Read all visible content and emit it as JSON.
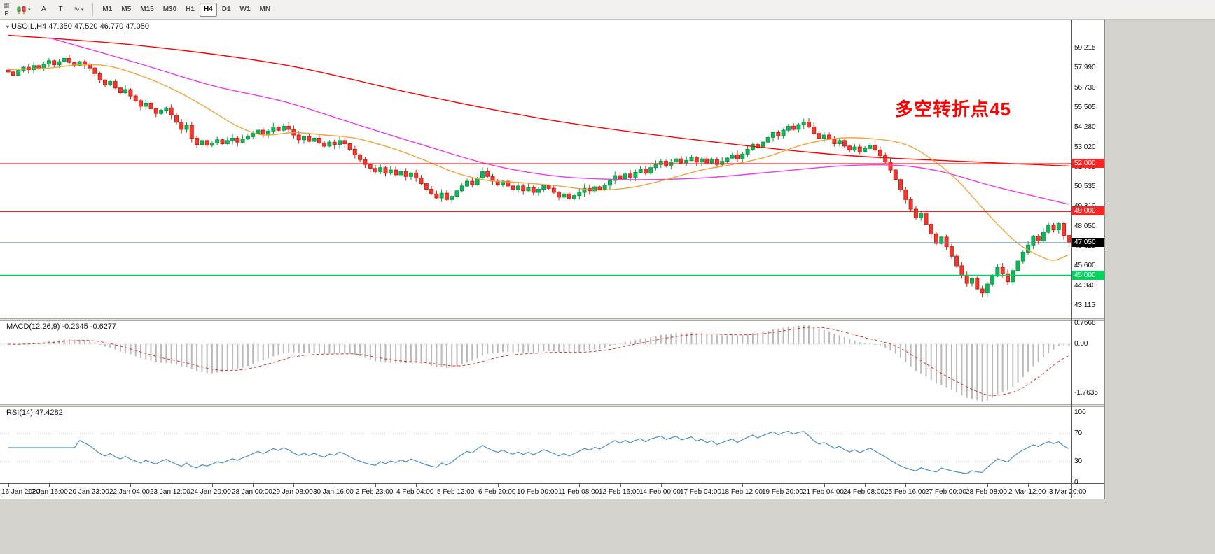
{
  "toolbar": {
    "dock_label": "F",
    "text_buttons": [
      "A",
      "T"
    ],
    "timeframes": [
      "M1",
      "M5",
      "M15",
      "M30",
      "H1",
      "H4",
      "D1",
      "W1",
      "MN"
    ],
    "active_timeframe": "H4"
  },
  "main_chart": {
    "symbol_line": "USOIL,H4  47.350 47.520 46.770 47.050",
    "annotation": {
      "text": "多空转折点45",
      "color": "#ff0000"
    }
  },
  "macd_panel": {
    "title": "MACD(12,26,9) -0.2345 -0.6277"
  },
  "rsi_panel": {
    "title": "RSI(14) 47.4282"
  },
  "chart_data": {
    "type": "candlestick",
    "symbol": "USOIL",
    "timeframe": "H4",
    "ohlc_current": {
      "open": 47.35,
      "high": 47.52,
      "low": 46.77,
      "close": 47.05
    },
    "price_axis_ticks": [
      "59.215",
      "57.990",
      "56.730",
      "55.505",
      "54.280",
      "53.020",
      "51.795",
      "50.535",
      "49.310",
      "48.050",
      "46.825",
      "45.600",
      "44.340",
      "43.115"
    ],
    "levels": [
      {
        "value": 52.0,
        "label": "52.000",
        "line_color": "#ff2424",
        "label_bg": "#ff2424",
        "label_fg": "#ffffff",
        "line_width": 1.2
      },
      {
        "value": 49.0,
        "label": "49.000",
        "line_color": "#ff2424",
        "label_bg": "#ff2424",
        "label_fg": "#ffffff",
        "line_width": 1.2
      },
      {
        "value": 47.05,
        "label": "47.050",
        "line_color": "#5f86aa",
        "label_bg": "#000000",
        "label_fg": "#ffffff",
        "line_width": 1.1
      },
      {
        "value": 45.0,
        "label": "45.000",
        "line_color": "#00d45f",
        "label_bg": "#00d45f",
        "label_fg": "#ffffff",
        "line_width": 1.6
      }
    ],
    "closes": [
      57.75,
      57.55,
      57.85,
      58.05,
      57.9,
      58.15,
      57.95,
      58.25,
      58.45,
      58.2,
      58.4,
      58.6,
      58.35,
      58.15,
      58.4,
      58.2,
      58.0,
      57.65,
      57.25,
      56.95,
      57.15,
      56.75,
      56.45,
      56.65,
      56.25,
      55.95,
      55.6,
      55.8,
      55.45,
      55.15,
      55.35,
      55.5,
      55.05,
      54.6,
      54.15,
      54.4,
      53.6,
      53.2,
      53.45,
      53.15,
      53.3,
      53.5,
      53.25,
      53.45,
      53.6,
      53.35,
      53.55,
      53.7,
      53.9,
      54.1,
      53.85,
      54.05,
      54.3,
      54.1,
      54.35,
      54.15,
      53.8,
      53.5,
      53.7,
      53.4,
      53.6,
      53.3,
      53.1,
      53.35,
      53.2,
      53.45,
      53.25,
      52.9,
      52.55,
      52.25,
      51.95,
      51.7,
      51.5,
      51.75,
      51.4,
      51.6,
      51.3,
      51.5,
      51.2,
      51.4,
      51.1,
      50.75,
      50.4,
      50.1,
      49.85,
      50.15,
      49.75,
      49.95,
      50.3,
      50.6,
      50.9,
      50.7,
      51.1,
      51.5,
      51.2,
      50.9,
      50.7,
      50.9,
      50.6,
      50.4,
      50.6,
      50.3,
      50.5,
      50.2,
      50.4,
      50.65,
      50.45,
      50.2,
      49.9,
      50.1,
      49.8,
      50.0,
      50.2,
      50.45,
      50.3,
      50.55,
      50.4,
      50.65,
      50.95,
      51.25,
      51.05,
      51.35,
      51.15,
      51.45,
      51.65,
      51.4,
      51.75,
      51.95,
      52.15,
      51.9,
      52.1,
      52.3,
      52.05,
      52.2,
      52.4,
      52.1,
      52.3,
      52.05,
      52.25,
      51.95,
      52.15,
      52.35,
      52.55,
      52.3,
      52.6,
      52.9,
      53.2,
      53.0,
      53.35,
      53.65,
      53.95,
      53.75,
      54.1,
      54.35,
      54.15,
      54.45,
      54.6,
      54.3,
      53.9,
      53.6,
      53.8,
      53.55,
      53.25,
      53.45,
      53.1,
      52.85,
      53.05,
      52.75,
      52.95,
      53.15,
      52.85,
      52.5,
      52.1,
      51.6,
      51.0,
      50.35,
      49.75,
      49.15,
      48.6,
      48.9,
      48.2,
      47.6,
      47.0,
      47.4,
      46.8,
      46.2,
      45.6,
      45.0,
      44.5,
      44.8,
      44.15,
      43.9,
      44.45,
      44.95,
      45.5,
      45.1,
      44.6,
      45.3,
      45.9,
      46.45,
      46.9,
      47.45,
      47.15,
      47.7,
      48.15,
      47.85,
      48.25,
      47.5,
      47.05
    ],
    "moving_averages": [
      {
        "name": "slow-ma-red",
        "color": "#ff0000",
        "anchors": [
          [
            0,
            60.05
          ],
          [
            26,
            59.4
          ],
          [
            54,
            58.2
          ],
          [
            81,
            56.3
          ],
          [
            108,
            54.65
          ],
          [
            136,
            53.45
          ],
          [
            163,
            52.55
          ],
          [
            190,
            52.1
          ],
          [
            208,
            51.85
          ]
        ]
      },
      {
        "name": "medium-ma-magenta",
        "color": "#ea3cea",
        "anchors": [
          [
            8,
            59.9
          ],
          [
            26,
            58.25
          ],
          [
            40,
            56.9
          ],
          [
            54,
            55.9
          ],
          [
            67,
            54.6
          ],
          [
            81,
            53.2
          ],
          [
            95,
            51.9
          ],
          [
            108,
            51.2
          ],
          [
            122,
            51.0
          ],
          [
            136,
            51.1
          ],
          [
            149,
            51.45
          ],
          [
            163,
            51.85
          ],
          [
            174,
            51.9
          ],
          [
            183,
            51.5
          ],
          [
            193,
            50.6
          ],
          [
            208,
            49.45
          ]
        ]
      },
      {
        "name": "fast-ma-orange",
        "color": "#f2a33c",
        "anchors": [
          [
            0,
            57.9
          ],
          [
            8,
            58.0
          ],
          [
            14,
            58.2
          ],
          [
            20,
            58.1
          ],
          [
            27,
            57.4
          ],
          [
            34,
            56.4
          ],
          [
            40,
            55.3
          ],
          [
            45,
            54.35
          ],
          [
            50,
            53.8
          ],
          [
            56,
            53.95
          ],
          [
            62,
            53.8
          ],
          [
            68,
            53.6
          ],
          [
            75,
            53.0
          ],
          [
            81,
            52.3
          ],
          [
            88,
            51.4
          ],
          [
            94,
            50.95
          ],
          [
            101,
            50.8
          ],
          [
            108,
            50.6
          ],
          [
            115,
            50.35
          ],
          [
            122,
            50.5
          ],
          [
            129,
            51.0
          ],
          [
            136,
            51.6
          ],
          [
            143,
            52.0
          ],
          [
            149,
            52.45
          ],
          [
            156,
            53.2
          ],
          [
            163,
            53.6
          ],
          [
            170,
            53.55
          ],
          [
            176,
            53.2
          ],
          [
            181,
            52.3
          ],
          [
            186,
            51.0
          ],
          [
            190,
            49.6
          ],
          [
            194,
            48.2
          ],
          [
            198,
            47.0
          ],
          [
            202,
            46.25
          ],
          [
            205,
            45.95
          ],
          [
            208,
            46.3
          ]
        ]
      }
    ],
    "indicators": {
      "macd": {
        "label": "MACD(12,26,9)",
        "fast": 12,
        "slow": 26,
        "signal": 9,
        "main_value": -0.2345,
        "signal_value": -0.6277,
        "axis_marks": [
          "0.7668",
          "0.00",
          "-1.7635"
        ]
      },
      "rsi": {
        "label": "RSI(14)",
        "period": 14,
        "value": 47.4282,
        "axis_marks": [
          "100",
          "70",
          "30",
          "0"
        ],
        "levels": [
          70,
          30
        ]
      }
    },
    "time_labels": [
      "16 Jan 2020",
      "17 Jan 16:00",
      "20 Jan 23:00",
      "22 Jan 04:00",
      "23 Jan 12:00",
      "24 Jan 20:00",
      "28 Jan 00:00",
      "29 Jan 08:00",
      "30 Jan 16:00",
      "2 Feb 23:00",
      "4 Feb 04:00",
      "5 Feb 12:00",
      "6 Feb 20:00",
      "10 Feb 00:00",
      "11 Feb 08:00",
      "12 Feb 16:00",
      "14 Feb 00:00",
      "17 Feb 04:00",
      "18 Feb 12:00",
      "19 Feb 20:00",
      "21 Feb 04:00",
      "24 Feb 08:00",
      "25 Feb 16:00",
      "27 Feb 00:00",
      "28 Feb 08:00",
      "2 Mar 12:00",
      "3 Mar 20:00"
    ]
  }
}
